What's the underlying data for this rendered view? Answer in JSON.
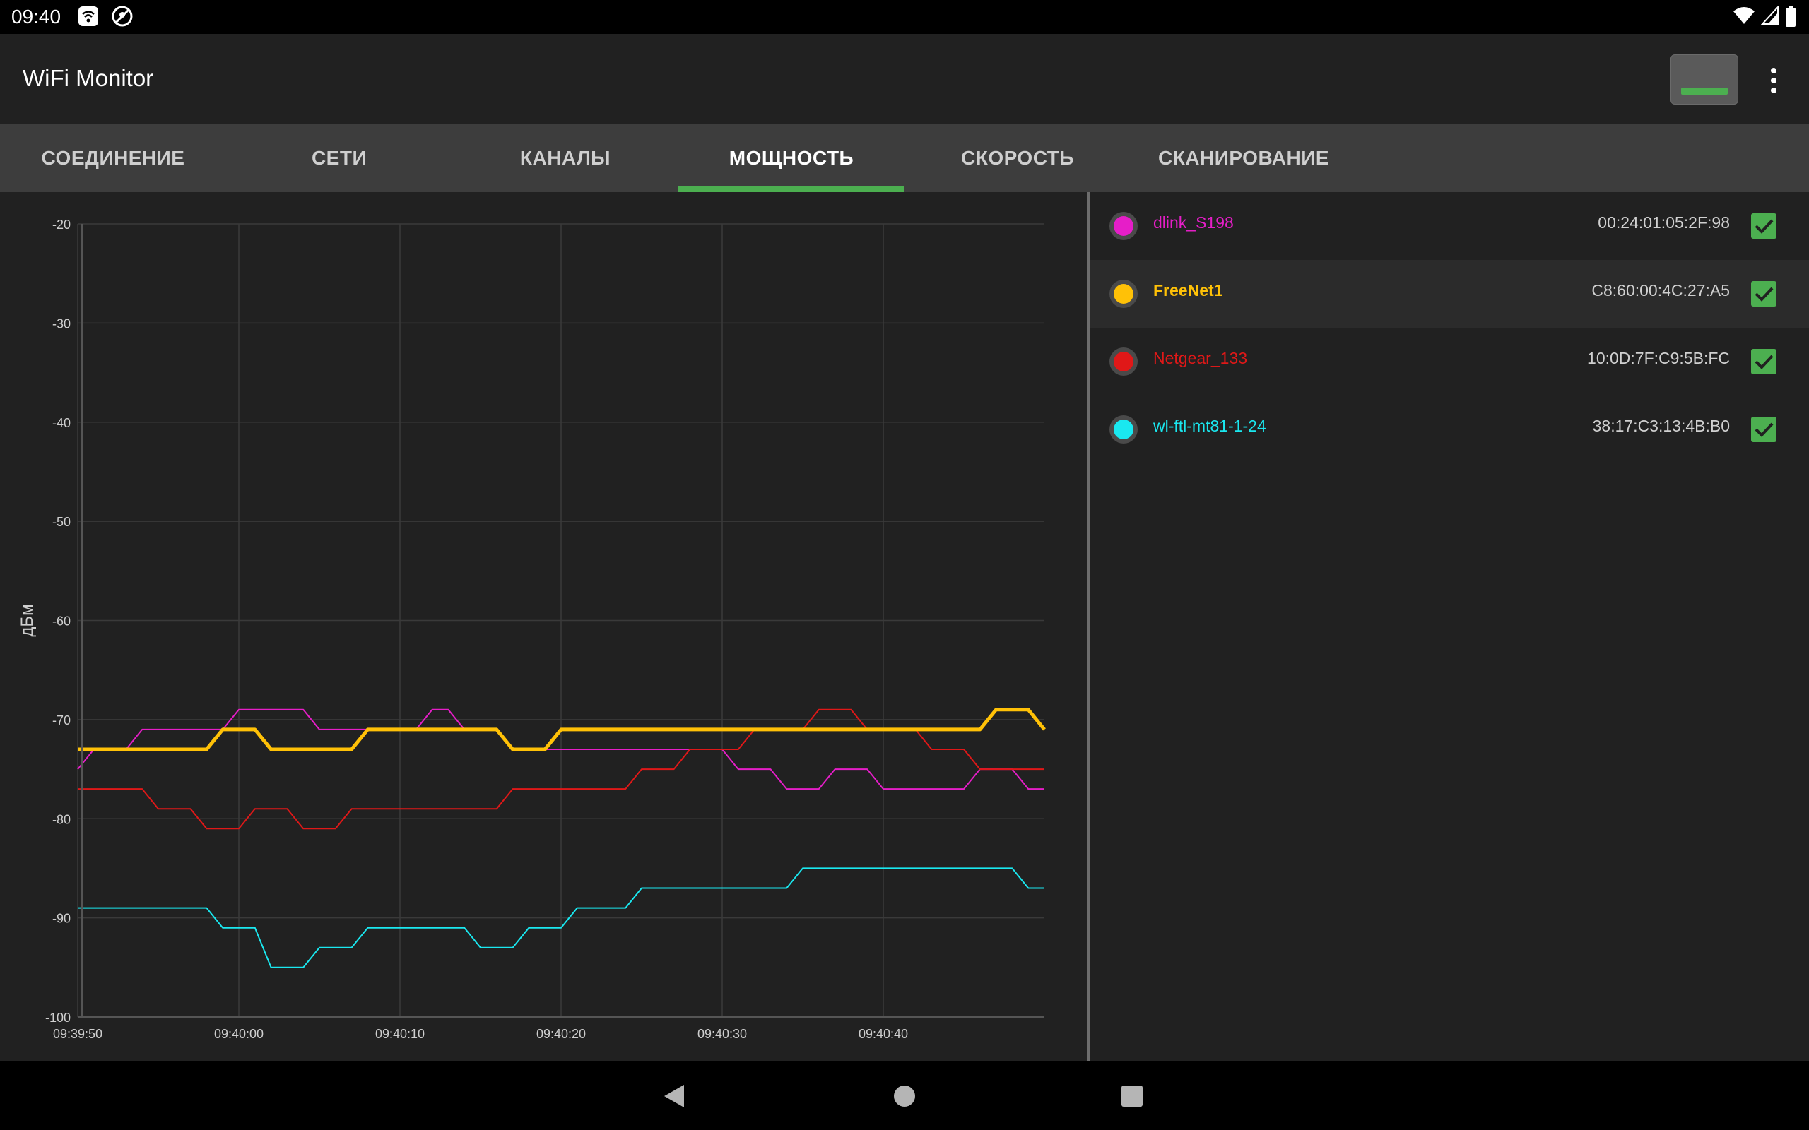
{
  "status_bar": {
    "time": "09:40",
    "left_icons": [
      "wifi-notification-icon",
      "location-off-icon"
    ],
    "right_icons": [
      "wifi-signal-icon",
      "cell-signal-icon",
      "battery-icon"
    ]
  },
  "app_bar": {
    "title": "WiFi Monitor",
    "action_icon": "display-mode-icon",
    "menu_icon": "more-vert-icon"
  },
  "tabs": [
    {
      "label": "СОЕДИНЕНИЕ",
      "active": false
    },
    {
      "label": "СЕТИ",
      "active": false
    },
    {
      "label": "КАНАЛЫ",
      "active": false
    },
    {
      "label": "МОЩНОСТЬ",
      "active": true
    },
    {
      "label": "СКОРОСТЬ",
      "active": false
    },
    {
      "label": "СКАНИРОВАНИЕ",
      "active": false
    }
  ],
  "accent_color": "#4caf50",
  "networks": [
    {
      "ssid": "dlink_S198",
      "mac": "00:24:01:05:2F:98",
      "color": "#e61ec8",
      "checked": true
    },
    {
      "ssid": "FreeNet1",
      "mac": "C8:60:00:4C:27:A5",
      "color": "#ffc107",
      "checked": true
    },
    {
      "ssid": "Netgear_133",
      "mac": "10:0D:7F:C9:5B:FC",
      "color": "#e01818",
      "checked": true
    },
    {
      "ssid": "wl-ftl-mt81-1-24",
      "mac": "38:17:C3:13:4B:B0",
      "color": "#1ae8f0",
      "checked": true
    }
  ],
  "chart_data": {
    "type": "line",
    "title": "",
    "xlabel": "",
    "ylabel": "дБм",
    "ylim": [
      -100,
      -20
    ],
    "yticks": [
      -20,
      -30,
      -40,
      -50,
      -60,
      -70,
      -80,
      -90,
      -100
    ],
    "xlim": [
      0,
      60
    ],
    "xticks": [
      0,
      10,
      20,
      30,
      40,
      50
    ],
    "xtick_labels": [
      "09:39:50",
      "09:40:00",
      "09:40:10",
      "09:40:20",
      "09:40:30",
      "09:40:40"
    ],
    "grid": true,
    "x": [
      0,
      1,
      2,
      3,
      4,
      5,
      6,
      7,
      8,
      9,
      10,
      11,
      12,
      13,
      14,
      15,
      16,
      17,
      18,
      19,
      20,
      21,
      22,
      23,
      24,
      25,
      26,
      27,
      28,
      29,
      30,
      31,
      32,
      33,
      34,
      35,
      36,
      37,
      38,
      39,
      40,
      41,
      42,
      43,
      44,
      45,
      46,
      47,
      48,
      49,
      50,
      51,
      52,
      53,
      54,
      55,
      56,
      57,
      58,
      59,
      60
    ],
    "series": [
      {
        "name": "dlink_S198",
        "color": "#e61ec8",
        "width": 2,
        "values": [
          -75,
          -73,
          -73,
          -73,
          -71,
          -71,
          -71,
          -71,
          -71,
          -71,
          -69,
          -69,
          -69,
          -69,
          -69,
          -71,
          -71,
          -71,
          -71,
          -71,
          -71,
          -71,
          -69,
          -69,
          -71,
          -71,
          -71,
          -73,
          -73,
          -73,
          -73,
          -73,
          -73,
          -73,
          -73,
          -73,
          -73,
          -73,
          -73,
          -73,
          -73,
          -75,
          -75,
          -75,
          -77,
          -77,
          -77,
          -75,
          -75,
          -75,
          -77,
          -77,
          -77,
          -77,
          -77,
          -77,
          -75,
          -75,
          -75,
          -77,
          -77
        ]
      },
      {
        "name": "Netgear_133",
        "color": "#e01818",
        "width": 2,
        "values": [
          -77,
          -77,
          -77,
          -77,
          -77,
          -79,
          -79,
          -79,
          -81,
          -81,
          -81,
          -79,
          -79,
          -79,
          -81,
          -81,
          -81,
          -79,
          -79,
          -79,
          -79,
          -79,
          -79,
          -79,
          -79,
          -79,
          -79,
          -77,
          -77,
          -77,
          -77,
          -77,
          -77,
          -77,
          -77,
          -75,
          -75,
          -75,
          -73,
          -73,
          -73,
          -73,
          -71,
          -71,
          -71,
          -71,
          -69,
          -69,
          -69,
          -71,
          -71,
          -71,
          -71,
          -73,
          -73,
          -73,
          -75,
          -75,
          -75,
          -75,
          -75
        ]
      },
      {
        "name": "FreeNet1",
        "color": "#ffc107",
        "width": 5,
        "values": [
          -73,
          -73,
          -73,
          -73,
          -73,
          -73,
          -73,
          -73,
          -73,
          -71,
          -71,
          -71,
          -73,
          -73,
          -73,
          -73,
          -73,
          -73,
          -71,
          -71,
          -71,
          -71,
          -71,
          -71,
          -71,
          -71,
          -71,
          -73,
          -73,
          -73,
          -71,
          -71,
          -71,
          -71,
          -71,
          -71,
          -71,
          -71,
          -71,
          -71,
          -71,
          -71,
          -71,
          -71,
          -71,
          -71,
          -71,
          -71,
          -71,
          -71,
          -71,
          -71,
          -71,
          -71,
          -71,
          -71,
          -71,
          -69,
          -69,
          -69,
          -71
        ]
      },
      {
        "name": "wl-ftl-mt81-1-24",
        "color": "#1ae8f0",
        "width": 2,
        "values": [
          -89,
          -89,
          -89,
          -89,
          -89,
          -89,
          -89,
          -89,
          -89,
          -91,
          -91,
          -91,
          -95,
          -95,
          -95,
          -93,
          -93,
          -93,
          -91,
          -91,
          -91,
          -91,
          -91,
          -91,
          -91,
          -93,
          -93,
          -93,
          -91,
          -91,
          -91,
          -89,
          -89,
          -89,
          -89,
          -87,
          -87,
          -87,
          -87,
          -87,
          -87,
          -87,
          -87,
          -87,
          -87,
          -85,
          -85,
          -85,
          -85,
          -85,
          -85,
          -85,
          -85,
          -85,
          -85,
          -85,
          -85,
          -85,
          -85,
          -87,
          -87
        ]
      }
    ]
  },
  "nav_bar": {
    "buttons": [
      "back-icon",
      "home-icon",
      "recents-icon"
    ]
  }
}
